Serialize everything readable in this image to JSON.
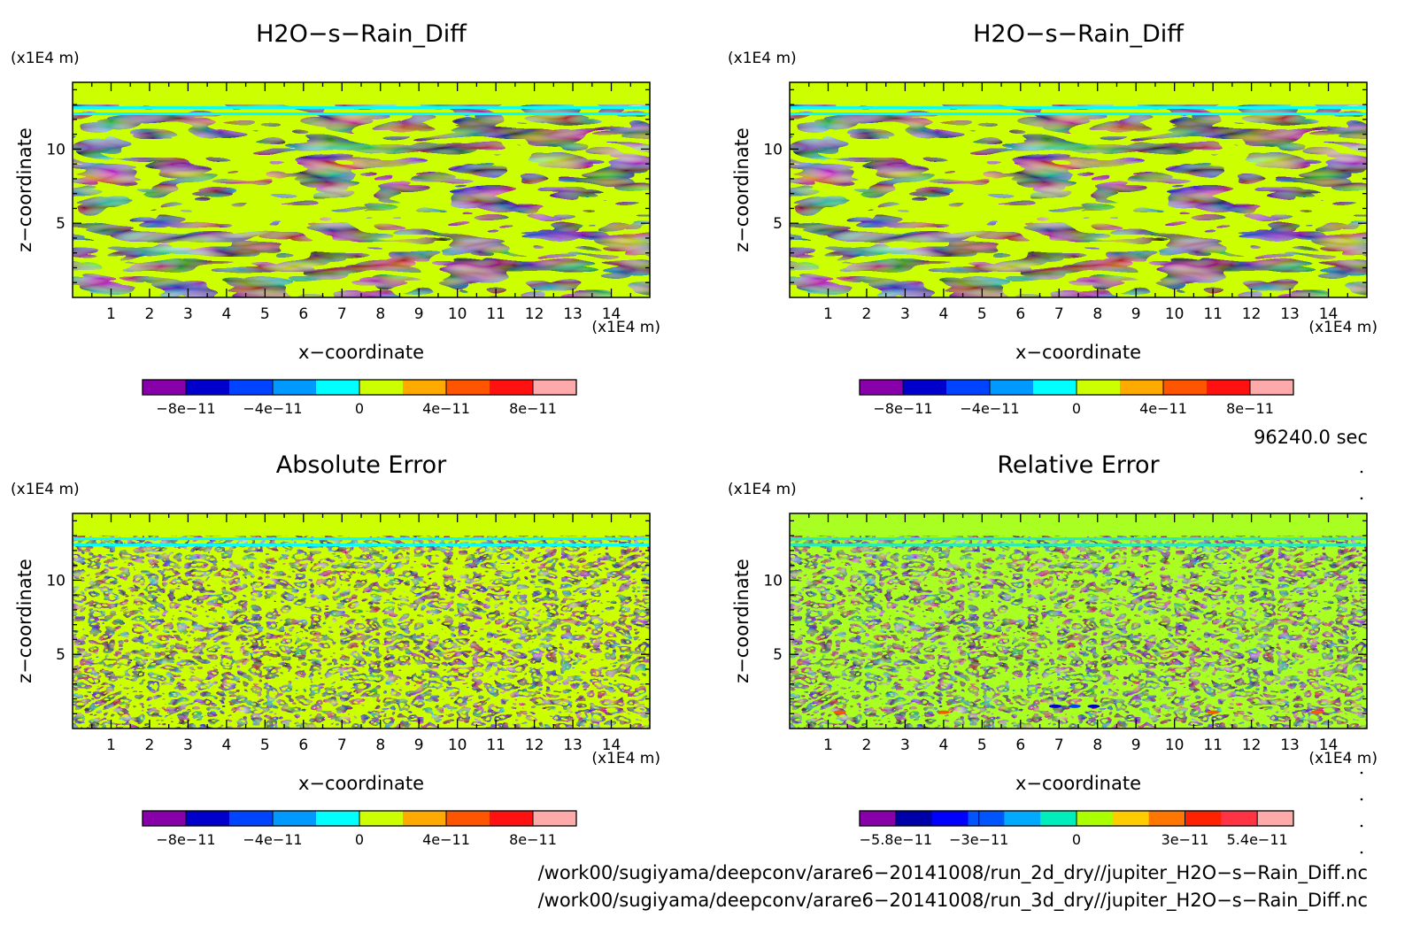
{
  "panels": [
    {
      "title": "H2O−s−Rain_Diff",
      "pattern": "field",
      "colors": [
        "#ccff00",
        "#00ffff"
      ],
      "band_color": "#ccff00",
      "z_unit": "(x1E4 m)",
      "x_unit": "(x1E4 m)",
      "xlabel": "x−coordinate",
      "ylabel": "z−coordinate",
      "x_ticks": [
        "1",
        "2",
        "3",
        "4",
        "5",
        "6",
        "7",
        "8",
        "9",
        "10",
        "11",
        "12",
        "13",
        "14"
      ],
      "z_ticks": [
        "5",
        "10"
      ],
      "colorbar": {
        "colors": [
          "#8800aa",
          "#0000cc",
          "#0044ff",
          "#0099ff",
          "#00ffff",
          "#ccff00",
          "#ffaa00",
          "#ff5500",
          "#ff1111",
          "#ffaaaa"
        ],
        "labels": [
          "−8e−11",
          "−4e−11",
          "0",
          "4e−11",
          "8e−11"
        ]
      }
    },
    {
      "title": "H2O−s−Rain_Diff",
      "pattern": "field",
      "colors": [
        "#ccff00",
        "#00ffff"
      ],
      "band_color": "#ccff00",
      "z_unit": "(x1E4 m)",
      "x_unit": "(x1E4 m)",
      "xlabel": "x−coordinate",
      "ylabel": "z−coordinate",
      "x_ticks": [
        "1",
        "2",
        "3",
        "4",
        "5",
        "6",
        "7",
        "8",
        "9",
        "10",
        "11",
        "12",
        "13",
        "14"
      ],
      "z_ticks": [
        "5",
        "10"
      ],
      "colorbar": {
        "colors": [
          "#8800aa",
          "#0000cc",
          "#0044ff",
          "#0099ff",
          "#00ffff",
          "#ccff00",
          "#ffaa00",
          "#ff5500",
          "#ff1111",
          "#ffaaaa"
        ],
        "labels": [
          "−8e−11",
          "−4e−11",
          "0",
          "4e−11",
          "8e−11"
        ]
      }
    },
    {
      "title": "Absolute Error",
      "pattern": "noise",
      "colors": [
        "#ccff00",
        "#00ffff"
      ],
      "band_color": "#ccff00",
      "z_unit": "(x1E4 m)",
      "x_unit": "(x1E4 m)",
      "xlabel": "x−coordinate",
      "ylabel": "z−coordinate",
      "x_ticks": [
        "1",
        "2",
        "3",
        "4",
        "5",
        "6",
        "7",
        "8",
        "9",
        "10",
        "11",
        "12",
        "13",
        "14"
      ],
      "z_ticks": [
        "5",
        "10"
      ],
      "colorbar": {
        "colors": [
          "#8800aa",
          "#0000cc",
          "#0044ff",
          "#0099ff",
          "#00ffff",
          "#ccff00",
          "#ffaa00",
          "#ff5500",
          "#ff1111",
          "#ffaaaa"
        ],
        "labels": [
          "−8e−11",
          "−4e−11",
          "0",
          "4e−11",
          "8e−11"
        ]
      }
    },
    {
      "title": "Relative Error",
      "pattern": "noise",
      "colors": [
        "#aaff22",
        "#22eebb"
      ],
      "band_color": "#aaff22",
      "z_unit": "(x1E4 m)",
      "x_unit": "(x1E4 m)",
      "xlabel": "x−coordinate",
      "ylabel": "z−coordinate",
      "x_ticks": [
        "1",
        "2",
        "3",
        "4",
        "5",
        "6",
        "7",
        "8",
        "9",
        "10",
        "11",
        "12",
        "13",
        "14"
      ],
      "z_ticks": [
        "5",
        "10"
      ],
      "colorbar": {
        "colors": [
          "#8800aa",
          "#0000aa",
          "#0000ff",
          "#0055ff",
          "#00aaff",
          "#00eebb",
          "#aaff00",
          "#ffcc00",
          "#ff7700",
          "#ff2200",
          "#ff3344",
          "#ffaaaa"
        ],
        "labels": [
          "−5.8e−11",
          "−3e−11",
          "0",
          "3e−11",
          "5.4e−11"
        ]
      }
    }
  ],
  "time_label": "96240.0 sec",
  "file_paths": [
    "/work00/sugiyama/deepconv/arare6−20141008/run_2d_dry//jupiter_H2O−s−Rain_Diff.nc",
    "/work00/sugiyama/deepconv/arare6−20141008/run_3d_dry//jupiter_H2O−s−Rain_Diff.nc"
  ],
  "chart_data": [
    {
      "type": "heatmap",
      "title": "H2O−s−Rain_Diff",
      "xlabel": "x−coordinate",
      "ylabel": "z−coordinate",
      "x_unit": "(x1E4 m)",
      "z_unit": "(x1E4 m)",
      "xlim": [
        0,
        15
      ],
      "zlim": [
        0,
        14.5
      ],
      "x_ticks": [
        1,
        2,
        3,
        4,
        5,
        6,
        7,
        8,
        9,
        10,
        11,
        12,
        13,
        14
      ],
      "z_ticks": [
        5,
        10
      ],
      "color_levels": [
        -1e-10,
        -8e-11,
        -6e-11,
        -4e-11,
        -2e-11,
        0,
        2e-11,
        4e-11,
        6e-11,
        8e-11,
        1e-10
      ],
      "colorbar_labels": [
        "−8e−11",
        "−4e−11",
        "0",
        "4e−11",
        "8e−11"
      ],
      "dominant_values": "alternating bands of 0 to 2e-11 (yellow-green) and -2e-11 to 0 (cyan); uniform 0 to 2e-11 above z≈13"
    },
    {
      "type": "heatmap",
      "title": "H2O−s−Rain_Diff",
      "xlabel": "x−coordinate",
      "ylabel": "z−coordinate",
      "x_unit": "(x1E4 m)",
      "z_unit": "(x1E4 m)",
      "xlim": [
        0,
        15
      ],
      "zlim": [
        0,
        14.5
      ],
      "x_ticks": [
        1,
        2,
        3,
        4,
        5,
        6,
        7,
        8,
        9,
        10,
        11,
        12,
        13,
        14
      ],
      "z_ticks": [
        5,
        10
      ],
      "color_levels": [
        -1e-10,
        -8e-11,
        -6e-11,
        -4e-11,
        -2e-11,
        0,
        2e-11,
        4e-11,
        6e-11,
        8e-11,
        1e-10
      ],
      "colorbar_labels": [
        "−8e−11",
        "−4e−11",
        "0",
        "4e−11",
        "8e−11"
      ],
      "dominant_values": "alternating bands of 0 to 2e-11 (yellow-green) and -2e-11 to 0 (cyan); uniform 0 to 2e-11 above z≈13"
    },
    {
      "type": "heatmap",
      "title": "Absolute Error",
      "xlabel": "x−coordinate",
      "ylabel": "z−coordinate",
      "x_unit": "(x1E4 m)",
      "z_unit": "(x1E4 m)",
      "xlim": [
        0,
        15
      ],
      "zlim": [
        0,
        14.5
      ],
      "x_ticks": [
        1,
        2,
        3,
        4,
        5,
        6,
        7,
        8,
        9,
        10,
        11,
        12,
        13,
        14
      ],
      "z_ticks": [
        5,
        10
      ],
      "color_levels": [
        -1e-10,
        -8e-11,
        -6e-11,
        -4e-11,
        -2e-11,
        0,
        2e-11,
        4e-11,
        6e-11,
        8e-11,
        1e-10
      ],
      "colorbar_labels": [
        "−8e−11",
        "−4e−11",
        "0",
        "4e−11",
        "8e−11"
      ],
      "dominant_values": "fine-grained mix of 0 to 2e-11 and -2e-11 to 0; uniform 0 to 2e-11 above z≈13"
    },
    {
      "type": "heatmap",
      "title": "Relative Error",
      "xlabel": "x−coordinate",
      "ylabel": "z−coordinate",
      "x_unit": "(x1E4 m)",
      "z_unit": "(x1E4 m)",
      "xlim": [
        0,
        15
      ],
      "zlim": [
        0,
        14.5
      ],
      "x_ticks": [
        1,
        2,
        3,
        4,
        5,
        6,
        7,
        8,
        9,
        10,
        11,
        12,
        13,
        14
      ],
      "z_ticks": [
        5,
        10
      ],
      "colorbar_labels": [
        "−5.8e−11",
        "−3e−11",
        "0",
        "3e−11",
        "5.4e−11"
      ],
      "dominant_values": "fine-grained mix of slightly positive (green) and slightly negative (teal) values; a few blue minima near x≈7–8, z≈1.5 and small red maxima near z≈1"
    }
  ]
}
